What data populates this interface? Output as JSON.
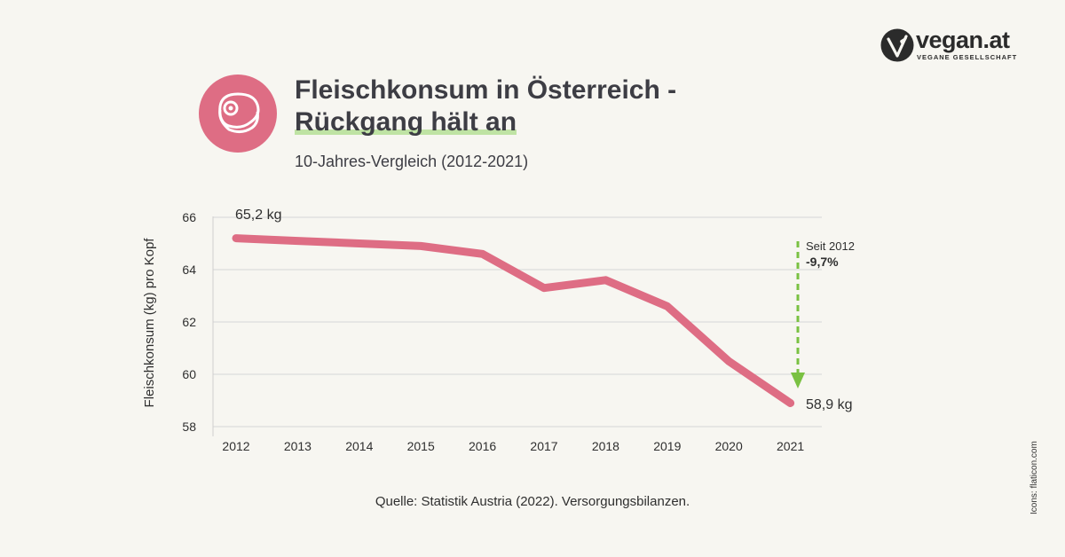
{
  "brand": {
    "name": "vegan.at",
    "tagline": "VEGANE GESELLSCHAFT"
  },
  "title_line1": "Fleischkonsum in Österreich -",
  "title_line2": "Rückgang hält an",
  "subtitle": "10-Jahres-Vergleich (2012-2021)",
  "source": "Quelle: Statistik Austria (2022). Versorgungsbilanzen.",
  "credit": "Icons: flaticon.com",
  "icons": {
    "header": "meat-steak-icon",
    "logo": "vegan-logo-icon"
  },
  "colors": {
    "line": "#de6d84",
    "badge": "#de6d84",
    "arrow": "#7ac142",
    "highlight": "#bfe3a4"
  },
  "chart_data": {
    "type": "line",
    "x": [
      "2012",
      "2013",
      "2014",
      "2015",
      "2016",
      "2017",
      "2018",
      "2019",
      "2020",
      "2021"
    ],
    "values": [
      65.2,
      65.1,
      65.0,
      64.9,
      64.6,
      63.3,
      63.6,
      62.6,
      60.5,
      58.9
    ],
    "ylabel": "Fleischkonsum (kg) pro Kopf",
    "yticks": [
      "66",
      "64",
      "62",
      "60",
      "58"
    ],
    "ylim": [
      58,
      66
    ],
    "grid": true,
    "annotations": {
      "start_label": "65,2 kg",
      "end_label": "58,9 kg",
      "change_note": "Seit 2012",
      "change_value": "-9,7%"
    }
  }
}
